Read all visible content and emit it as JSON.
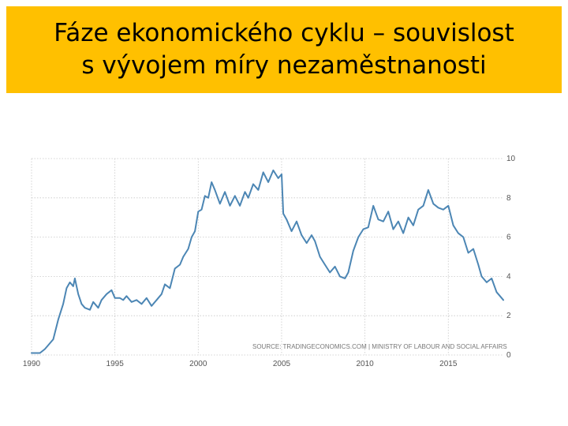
{
  "slide": {
    "title_line1": "Fáze ekonomického cyklu – souvislost",
    "title_line2": "s vývojem míry nezaměstnanosti",
    "title_bg": "#FFC000"
  },
  "chart_data": {
    "type": "line",
    "title": "",
    "xlabel": "",
    "ylabel": "",
    "xlim": [
      1990,
      2018.3
    ],
    "ylim": [
      0,
      10
    ],
    "grid": true,
    "y_axis_position": "right",
    "line_color": "#4C86B4",
    "source_note": "SOURCE: TRADINGECONOMICS.COM | MINISTRY OF LABOUR AND SOCIAL AFFAIRS",
    "x_ticks": [
      {
        "value": 1990,
        "label": "1990"
      },
      {
        "value": 1995,
        "label": "1995"
      },
      {
        "value": 2000,
        "label": "2000"
      },
      {
        "value": 2005,
        "label": "2005"
      },
      {
        "value": 2010,
        "label": "2010"
      },
      {
        "value": 2015,
        "label": "2015"
      }
    ],
    "y_ticks": [
      {
        "value": 0,
        "label": "0"
      },
      {
        "value": 2,
        "label": "2"
      },
      {
        "value": 4,
        "label": "4"
      },
      {
        "value": 6,
        "label": "6"
      },
      {
        "value": 8,
        "label": "8"
      },
      {
        "value": 10,
        "label": "10"
      }
    ],
    "series": [
      {
        "values": [
          [
            1990.0,
            0.1
          ],
          [
            1990.5,
            0.1
          ],
          [
            1990.8,
            0.3
          ],
          [
            1991.0,
            0.5
          ],
          [
            1991.3,
            0.8
          ],
          [
            1991.6,
            1.8
          ],
          [
            1991.9,
            2.6
          ],
          [
            1992.1,
            3.4
          ],
          [
            1992.3,
            3.7
          ],
          [
            1992.5,
            3.5
          ],
          [
            1992.6,
            3.9
          ],
          [
            1992.8,
            3.1
          ],
          [
            1993.0,
            2.6
          ],
          [
            1993.2,
            2.4
          ],
          [
            1993.5,
            2.3
          ],
          [
            1993.7,
            2.7
          ],
          [
            1994.0,
            2.4
          ],
          [
            1994.2,
            2.8
          ],
          [
            1994.5,
            3.1
          ],
          [
            1994.8,
            3.3
          ],
          [
            1995.0,
            2.9
          ],
          [
            1995.3,
            2.9
          ],
          [
            1995.5,
            2.8
          ],
          [
            1995.7,
            3.0
          ],
          [
            1996.0,
            2.7
          ],
          [
            1996.3,
            2.8
          ],
          [
            1996.6,
            2.6
          ],
          [
            1996.9,
            2.9
          ],
          [
            1997.2,
            2.5
          ],
          [
            1997.5,
            2.8
          ],
          [
            1997.8,
            3.1
          ],
          [
            1998.0,
            3.6
          ],
          [
            1998.3,
            3.4
          ],
          [
            1998.6,
            4.4
          ],
          [
            1998.9,
            4.6
          ],
          [
            1999.1,
            5.0
          ],
          [
            1999.4,
            5.4
          ],
          [
            1999.6,
            6.0
          ],
          [
            1999.8,
            6.3
          ],
          [
            2000.0,
            7.3
          ],
          [
            2000.2,
            7.4
          ],
          [
            2000.4,
            8.1
          ],
          [
            2000.6,
            8.0
          ],
          [
            2000.8,
            8.8
          ],
          [
            2001.0,
            8.4
          ],
          [
            2001.3,
            7.7
          ],
          [
            2001.6,
            8.3
          ],
          [
            2001.9,
            7.6
          ],
          [
            2002.2,
            8.1
          ],
          [
            2002.5,
            7.6
          ],
          [
            2002.8,
            8.3
          ],
          [
            2003.0,
            8.0
          ],
          [
            2003.3,
            8.7
          ],
          [
            2003.6,
            8.4
          ],
          [
            2003.9,
            9.3
          ],
          [
            2004.2,
            8.8
          ],
          [
            2004.5,
            9.4
          ],
          [
            2004.8,
            9.0
          ],
          [
            2005.0,
            9.2
          ],
          [
            2005.1,
            7.2
          ],
          [
            2005.3,
            6.9
          ],
          [
            2005.6,
            6.3
          ],
          [
            2005.9,
            6.8
          ],
          [
            2006.2,
            6.1
          ],
          [
            2006.5,
            5.7
          ],
          [
            2006.8,
            6.1
          ],
          [
            2007.0,
            5.8
          ],
          [
            2007.3,
            5.0
          ],
          [
            2007.6,
            4.6
          ],
          [
            2007.9,
            4.2
          ],
          [
            2008.2,
            4.5
          ],
          [
            2008.5,
            4.0
          ],
          [
            2008.8,
            3.9
          ],
          [
            2009.0,
            4.2
          ],
          [
            2009.3,
            5.3
          ],
          [
            2009.6,
            6.0
          ],
          [
            2009.9,
            6.4
          ],
          [
            2010.2,
            6.5
          ],
          [
            2010.5,
            7.6
          ],
          [
            2010.8,
            6.9
          ],
          [
            2011.1,
            6.8
          ],
          [
            2011.4,
            7.3
          ],
          [
            2011.7,
            6.4
          ],
          [
            2012.0,
            6.8
          ],
          [
            2012.3,
            6.2
          ],
          [
            2012.6,
            7.0
          ],
          [
            2012.9,
            6.6
          ],
          [
            2013.2,
            7.4
          ],
          [
            2013.5,
            7.6
          ],
          [
            2013.8,
            8.4
          ],
          [
            2014.1,
            7.7
          ],
          [
            2014.4,
            7.5
          ],
          [
            2014.7,
            7.4
          ],
          [
            2015.0,
            7.6
          ],
          [
            2015.3,
            6.6
          ],
          [
            2015.6,
            6.2
          ],
          [
            2015.9,
            6.0
          ],
          [
            2016.2,
            5.2
          ],
          [
            2016.5,
            5.4
          ],
          [
            2016.8,
            4.6
          ],
          [
            2017.0,
            4.0
          ],
          [
            2017.3,
            3.7
          ],
          [
            2017.6,
            3.9
          ],
          [
            2017.9,
            3.2
          ],
          [
            2018.1,
            3.0
          ],
          [
            2018.3,
            2.8
          ]
        ]
      }
    ]
  }
}
